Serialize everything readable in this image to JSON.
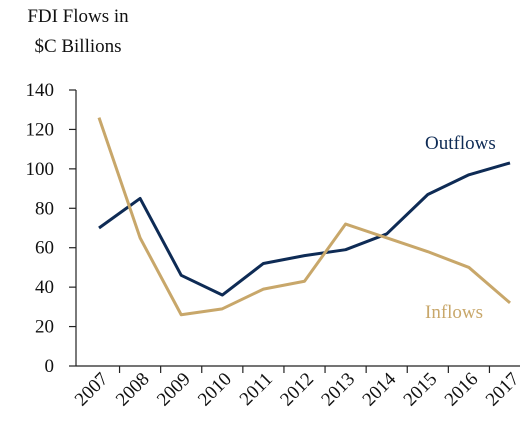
{
  "chart_data": {
    "type": "line",
    "title_lines": [
      "FDI Flows in",
      "$C Billions"
    ],
    "categories": [
      "2007",
      "2008",
      "2009",
      "2010",
      "2011",
      "2012",
      "2013",
      "2014",
      "2015",
      "2016",
      "2017"
    ],
    "series": [
      {
        "name": "Outflows",
        "color": "#0e2b55",
        "values": [
          70,
          85,
          46,
          36,
          52,
          56,
          59,
          67,
          87,
          97,
          103
        ]
      },
      {
        "name": "Inflows",
        "color": "#c8a76a",
        "values": [
          126,
          65,
          26,
          29,
          39,
          43,
          72,
          65,
          58,
          50,
          32
        ]
      }
    ],
    "ylim": [
      0,
      140
    ],
    "yticks": [
      0,
      20,
      40,
      60,
      80,
      100,
      120,
      140
    ]
  }
}
